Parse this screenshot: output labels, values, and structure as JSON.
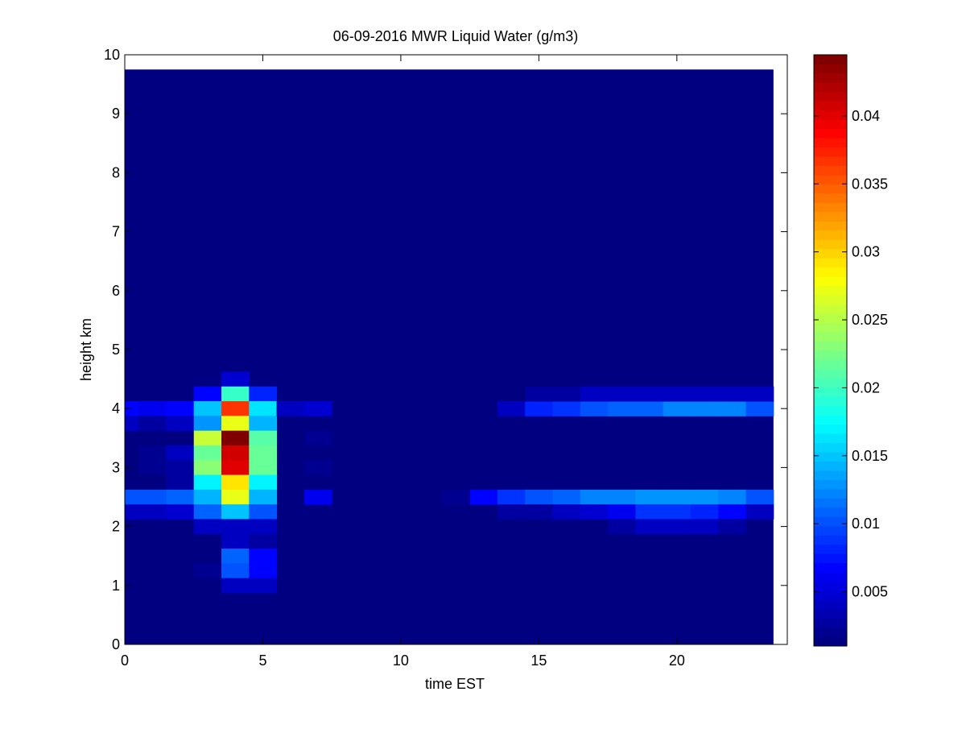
{
  "chart_data": {
    "type": "heatmap",
    "title": "06-09-2016 MWR Liquid Water (g/m3)",
    "xlabel": "time EST",
    "ylabel": "height km",
    "xlim": [
      0,
      24
    ],
    "ylim": [
      0,
      10
    ],
    "x_ticks": [
      0,
      5,
      10,
      15,
      20
    ],
    "y_ticks": [
      0,
      1,
      2,
      3,
      4,
      5,
      6,
      7,
      8,
      9,
      10
    ],
    "grid": false,
    "colormap": "jet",
    "data_extent": {
      "x": [
        0,
        23.5
      ],
      "y": [
        0,
        9.75
      ]
    },
    "cell": {
      "dx": 1,
      "dy": 0.25
    },
    "background_value": 0.001,
    "colorbar": {
      "range": [
        0.001,
        0.0445
      ],
      "ticks": [
        0.005,
        0.01,
        0.015,
        0.02,
        0.025,
        0.03,
        0.035,
        0.04
      ],
      "tick_labels": [
        "0.005",
        "0.01",
        "0.015",
        "0.02",
        "0.025",
        "0.03",
        "0.035",
        "0.04"
      ],
      "levels": 64
    },
    "cells": [
      {
        "x": 0,
        "y": 4.0,
        "v": 0.007
      },
      {
        "x": 0,
        "y": 3.75,
        "v": 0.004
      },
      {
        "x": 0,
        "y": 2.5,
        "v": 0.01
      },
      {
        "x": 0,
        "y": 2.25,
        "v": 0.004
      },
      {
        "x": 1,
        "y": 4.0,
        "v": 0.006
      },
      {
        "x": 1,
        "y": 3.75,
        "v": 0.003
      },
      {
        "x": 1,
        "y": 3.25,
        "v": 0.002
      },
      {
        "x": 1,
        "y": 3.0,
        "v": 0.002
      },
      {
        "x": 1,
        "y": 2.5,
        "v": 0.01
      },
      {
        "x": 1,
        "y": 2.25,
        "v": 0.004
      },
      {
        "x": 2,
        "y": 4.0,
        "v": 0.007
      },
      {
        "x": 2,
        "y": 3.75,
        "v": 0.004
      },
      {
        "x": 2,
        "y": 3.25,
        "v": 0.004
      },
      {
        "x": 2,
        "y": 3.0,
        "v": 0.003
      },
      {
        "x": 2,
        "y": 2.75,
        "v": 0.003
      },
      {
        "x": 2,
        "y": 2.5,
        "v": 0.011
      },
      {
        "x": 2,
        "y": 2.25,
        "v": 0.005
      },
      {
        "x": 3,
        "y": 4.25,
        "v": 0.007
      },
      {
        "x": 3,
        "y": 4.0,
        "v": 0.015
      },
      {
        "x": 3,
        "y": 3.75,
        "v": 0.013
      },
      {
        "x": 3,
        "y": 3.5,
        "v": 0.026
      },
      {
        "x": 3,
        "y": 3.25,
        "v": 0.022
      },
      {
        "x": 3,
        "y": 3.0,
        "v": 0.023
      },
      {
        "x": 3,
        "y": 2.75,
        "v": 0.017
      },
      {
        "x": 3,
        "y": 2.5,
        "v": 0.014
      },
      {
        "x": 3,
        "y": 2.25,
        "v": 0.011
      },
      {
        "x": 3,
        "y": 2.0,
        "v": 0.004
      },
      {
        "x": 3,
        "y": 1.25,
        "v": 0.002
      },
      {
        "x": 4,
        "y": 4.5,
        "v": 0.005
      },
      {
        "x": 4,
        "y": 4.25,
        "v": 0.02
      },
      {
        "x": 4,
        "y": 4.0,
        "v": 0.037
      },
      {
        "x": 4,
        "y": 3.75,
        "v": 0.027
      },
      {
        "x": 4,
        "y": 3.5,
        "v": 0.044
      },
      {
        "x": 4,
        "y": 3.25,
        "v": 0.041
      },
      {
        "x": 4,
        "y": 3.0,
        "v": 0.04
      },
      {
        "x": 4,
        "y": 2.75,
        "v": 0.029
      },
      {
        "x": 4,
        "y": 2.5,
        "v": 0.027
      },
      {
        "x": 4,
        "y": 2.25,
        "v": 0.015
      },
      {
        "x": 4,
        "y": 2.0,
        "v": 0.004
      },
      {
        "x": 4,
        "y": 1.75,
        "v": 0.004
      },
      {
        "x": 4,
        "y": 1.5,
        "v": 0.011
      },
      {
        "x": 4,
        "y": 1.25,
        "v": 0.01
      },
      {
        "x": 4,
        "y": 1.0,
        "v": 0.004
      },
      {
        "x": 5,
        "y": 4.25,
        "v": 0.008
      },
      {
        "x": 5,
        "y": 4.0,
        "v": 0.016
      },
      {
        "x": 5,
        "y": 3.75,
        "v": 0.014
      },
      {
        "x": 5,
        "y": 3.5,
        "v": 0.021
      },
      {
        "x": 5,
        "y": 3.25,
        "v": 0.022
      },
      {
        "x": 5,
        "y": 3.0,
        "v": 0.022
      },
      {
        "x": 5,
        "y": 2.75,
        "v": 0.017
      },
      {
        "x": 5,
        "y": 2.5,
        "v": 0.014
      },
      {
        "x": 5,
        "y": 2.25,
        "v": 0.01
      },
      {
        "x": 5,
        "y": 2.0,
        "v": 0.004
      },
      {
        "x": 5,
        "y": 1.75,
        "v": 0.003
      },
      {
        "x": 5,
        "y": 1.5,
        "v": 0.007
      },
      {
        "x": 5,
        "y": 1.25,
        "v": 0.007
      },
      {
        "x": 5,
        "y": 1.0,
        "v": 0.004
      },
      {
        "x": 6,
        "y": 4.0,
        "v": 0.004
      },
      {
        "x": 7,
        "y": 4.0,
        "v": 0.005
      },
      {
        "x": 7,
        "y": 3.5,
        "v": 0.002
      },
      {
        "x": 7,
        "y": 3.0,
        "v": 0.002
      },
      {
        "x": 7,
        "y": 2.5,
        "v": 0.006
      },
      {
        "x": 12,
        "y": 2.5,
        "v": 0.002
      },
      {
        "x": 13,
        "y": 2.5,
        "v": 0.007
      },
      {
        "x": 14,
        "y": 4.0,
        "v": 0.004
      },
      {
        "x": 14,
        "y": 2.5,
        "v": 0.009
      },
      {
        "x": 14,
        "y": 2.25,
        "v": 0.003
      },
      {
        "x": 15,
        "y": 4.0,
        "v": 0.008
      },
      {
        "x": 15,
        "y": 4.25,
        "v": 0.003
      },
      {
        "x": 15,
        "y": 2.5,
        "v": 0.01
      },
      {
        "x": 15,
        "y": 2.25,
        "v": 0.003
      },
      {
        "x": 16,
        "y": 4.0,
        "v": 0.009
      },
      {
        "x": 16,
        "y": 4.25,
        "v": 0.003
      },
      {
        "x": 16,
        "y": 2.5,
        "v": 0.011
      },
      {
        "x": 16,
        "y": 2.25,
        "v": 0.004
      },
      {
        "x": 17,
        "y": 4.0,
        "v": 0.01
      },
      {
        "x": 17,
        "y": 4.25,
        "v": 0.004
      },
      {
        "x": 17,
        "y": 2.5,
        "v": 0.012
      },
      {
        "x": 17,
        "y": 2.25,
        "v": 0.005
      },
      {
        "x": 18,
        "y": 4.0,
        "v": 0.011
      },
      {
        "x": 18,
        "y": 4.25,
        "v": 0.004
      },
      {
        "x": 18,
        "y": 2.5,
        "v": 0.012
      },
      {
        "x": 18,
        "y": 2.25,
        "v": 0.006
      },
      {
        "x": 18,
        "y": 2.0,
        "v": 0.003
      },
      {
        "x": 19,
        "y": 4.0,
        "v": 0.011
      },
      {
        "x": 19,
        "y": 4.25,
        "v": 0.004
      },
      {
        "x": 19,
        "y": 2.5,
        "v": 0.013
      },
      {
        "x": 19,
        "y": 2.25,
        "v": 0.009
      },
      {
        "x": 19,
        "y": 2.0,
        "v": 0.004
      },
      {
        "x": 20,
        "y": 4.0,
        "v": 0.012
      },
      {
        "x": 20,
        "y": 4.25,
        "v": 0.004
      },
      {
        "x": 20,
        "y": 2.5,
        "v": 0.013
      },
      {
        "x": 20,
        "y": 2.25,
        "v": 0.009
      },
      {
        "x": 20,
        "y": 2.0,
        "v": 0.004
      },
      {
        "x": 21,
        "y": 4.0,
        "v": 0.012
      },
      {
        "x": 21,
        "y": 4.25,
        "v": 0.004
      },
      {
        "x": 21,
        "y": 2.5,
        "v": 0.013
      },
      {
        "x": 21,
        "y": 2.25,
        "v": 0.008
      },
      {
        "x": 21,
        "y": 2.0,
        "v": 0.004
      },
      {
        "x": 22,
        "y": 4.0,
        "v": 0.012
      },
      {
        "x": 22,
        "y": 4.25,
        "v": 0.004
      },
      {
        "x": 22,
        "y": 2.5,
        "v": 0.012
      },
      {
        "x": 22,
        "y": 2.25,
        "v": 0.007
      },
      {
        "x": 22,
        "y": 2.0,
        "v": 0.003
      },
      {
        "x": 23,
        "y": 4.0,
        "v": 0.01
      },
      {
        "x": 23,
        "y": 4.25,
        "v": 0.004
      },
      {
        "x": 23,
        "y": 2.5,
        "v": 0.01
      },
      {
        "x": 23,
        "y": 2.25,
        "v": 0.004
      }
    ]
  }
}
